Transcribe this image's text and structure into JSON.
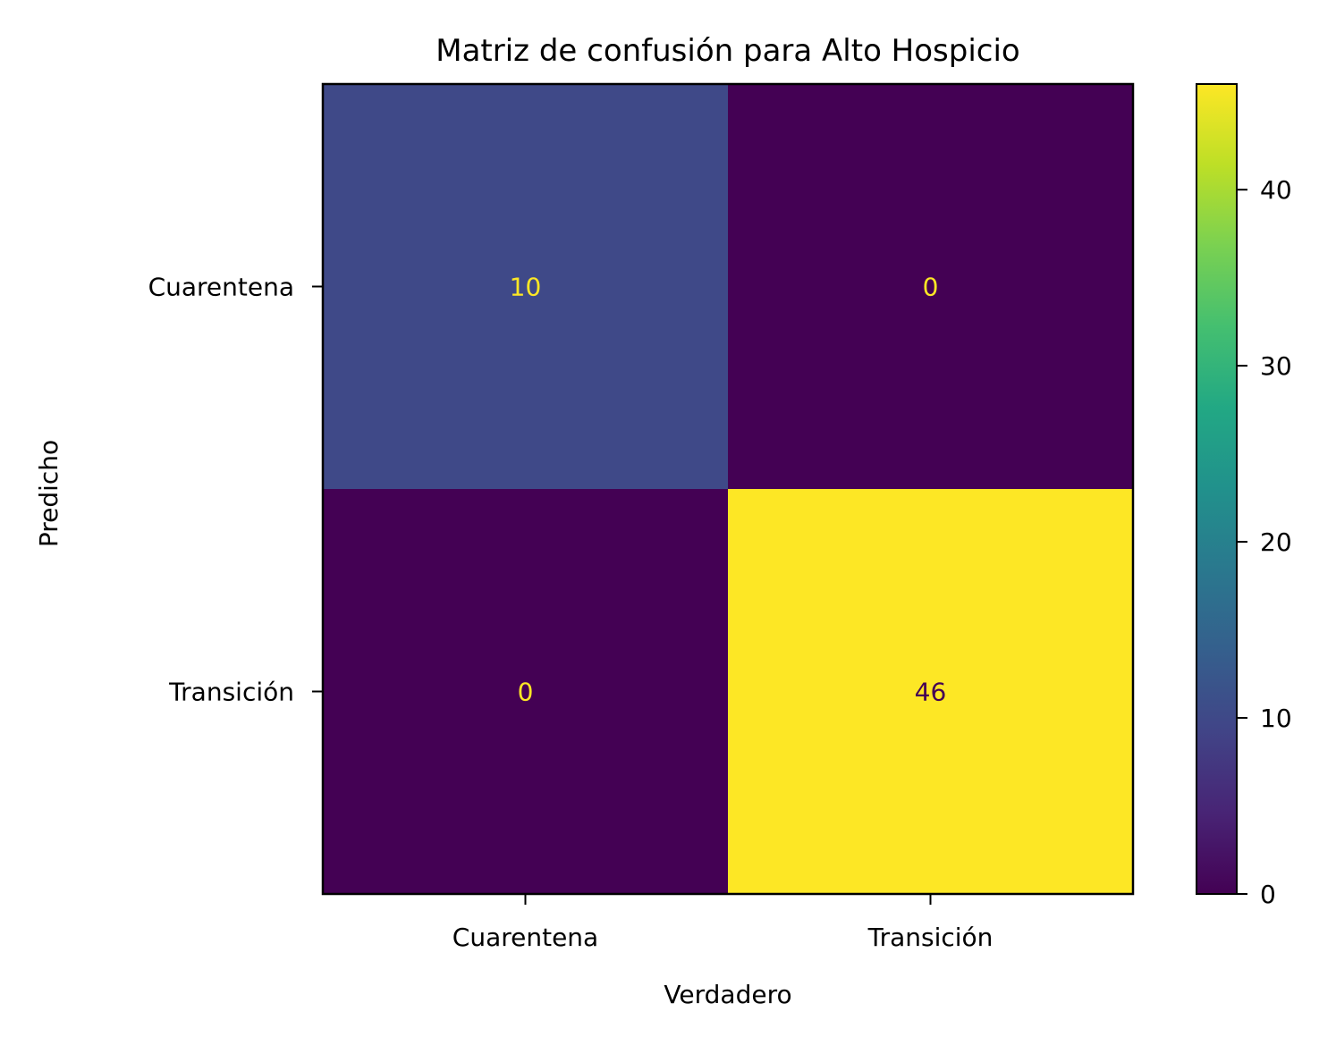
{
  "chart_data": {
    "type": "heatmap",
    "title": "Matriz de confusión para Alto Hospicio",
    "xlabel": "Verdadero",
    "ylabel": "Predicho",
    "x_categories": [
      "Cuarentena",
      "Transición"
    ],
    "y_categories": [
      "Cuarentena",
      "Transición"
    ],
    "values": [
      [
        10,
        0
      ],
      [
        0,
        46
      ]
    ],
    "cell_labels": [
      [
        "10",
        "0"
      ],
      [
        "0",
        "46"
      ]
    ],
    "colormap": "viridis",
    "color_range": [
      0,
      46
    ],
    "colorbar": {
      "ticks": [
        0,
        10,
        20,
        30,
        40
      ],
      "tick_labels": [
        "0",
        "10",
        "20",
        "30",
        "40"
      ],
      "placement": "right"
    },
    "grid": false,
    "colors": {
      "low": "#440154",
      "high": "#fde725",
      "text_on_dark": "#fde725",
      "text_on_light": "#440154"
    }
  }
}
